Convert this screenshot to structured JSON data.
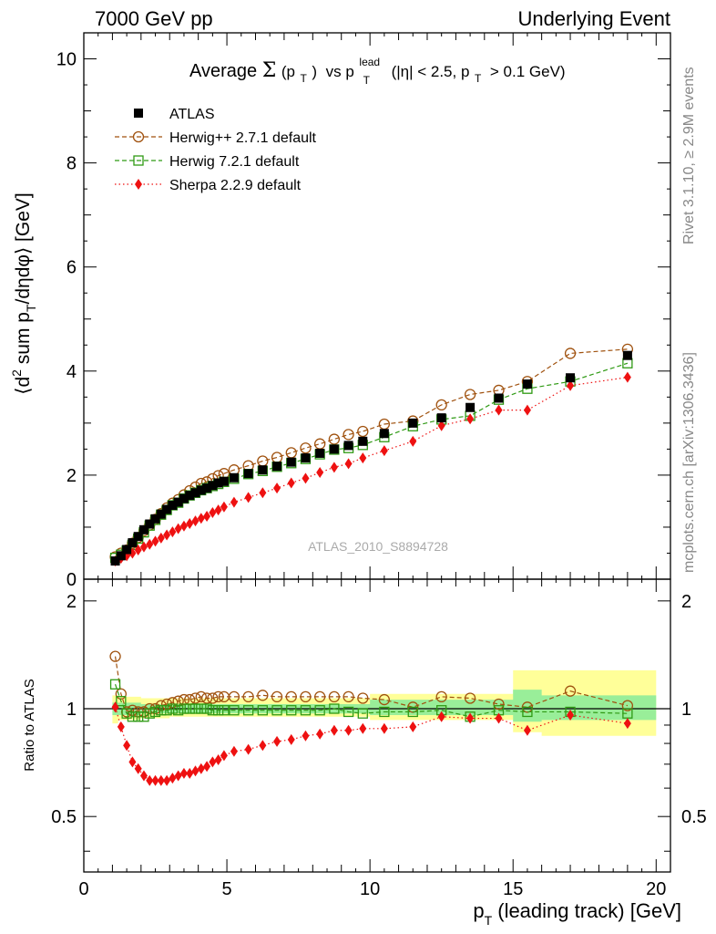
{
  "header": {
    "left": "7000 GeV pp",
    "right": "Underlying Event"
  },
  "side_text": {
    "rivet": "Rivet 3.1.10, ≥ 2.9M events",
    "mcplots": "mcplots.cern.ch [arXiv:1306.3436]"
  },
  "chart_data": [
    {
      "type": "scatter",
      "panel": "main",
      "title_parts": {
        "prefix": "Average",
        "sigma": "Σ",
        "pt": "(p",
        "pt_sub": "T",
        "pt_close": ")",
        "vs": "vs p",
        "lead_sup": "lead",
        "lead_sub": "T",
        "cuts": "(|η| < 2.5, p",
        "cuts_sub": "T",
        "cuts_end": "> 0.1 GeV)"
      },
      "ylabel_parts": {
        "a": "⟨d",
        "sup": "2",
        "b": " sum p",
        "sub": "T",
        "c": "/dηdφ⟩ [GeV]"
      },
      "watermark": "ATLAS_2010_S8894728",
      "xlim": [
        0,
        20.5
      ],
      "ylim": [
        0,
        10.5
      ],
      "y_ticks": [
        "0",
        "2",
        "4",
        "6",
        "8",
        "10"
      ],
      "legend_position": "top-left",
      "series": [
        {
          "name": "ATLAS",
          "marker": "filled-square",
          "color": "#000000",
          "x": [
            1.1,
            1.3,
            1.5,
            1.7,
            1.9,
            2.1,
            2.3,
            2.5,
            2.7,
            2.9,
            3.1,
            3.3,
            3.5,
            3.7,
            3.9,
            4.1,
            4.3,
            4.5,
            4.7,
            4.9,
            5.25,
            5.75,
            6.25,
            6.75,
            7.25,
            7.75,
            8.25,
            8.75,
            9.25,
            9.75,
            10.5,
            11.5,
            12.5,
            13.5,
            14.5,
            15.5,
            17,
            19
          ],
          "y": [
            0.35,
            0.45,
            0.57,
            0.7,
            0.82,
            0.95,
            1.06,
            1.16,
            1.25,
            1.34,
            1.42,
            1.48,
            1.55,
            1.61,
            1.66,
            1.71,
            1.75,
            1.8,
            1.85,
            1.88,
            1.95,
            2.03,
            2.1,
            2.17,
            2.25,
            2.33,
            2.42,
            2.5,
            2.57,
            2.65,
            2.8,
            3.0,
            3.1,
            3.3,
            3.48,
            3.75,
            3.87,
            4.3
          ]
        },
        {
          "name": "Herwig++ 2.7.1 default",
          "marker": "open-circle",
          "line": "dashed",
          "color": "#a0520f",
          "x": [
            1.1,
            1.3,
            1.5,
            1.7,
            1.9,
            2.1,
            2.3,
            2.5,
            2.7,
            2.9,
            3.1,
            3.3,
            3.5,
            3.7,
            3.9,
            4.1,
            4.3,
            4.5,
            4.7,
            4.9,
            5.25,
            5.75,
            6.25,
            6.75,
            7.25,
            7.75,
            8.25,
            8.75,
            9.25,
            9.75,
            10.5,
            11.5,
            12.5,
            13.5,
            14.5,
            15.5,
            17,
            19
          ],
          "y": [
            0.43,
            0.5,
            0.56,
            0.69,
            0.8,
            0.93,
            1.04,
            1.15,
            1.26,
            1.37,
            1.46,
            1.53,
            1.62,
            1.7,
            1.77,
            1.84,
            1.87,
            1.93,
            1.99,
            2.03,
            2.1,
            2.18,
            2.27,
            2.34,
            2.43,
            2.52,
            2.6,
            2.69,
            2.78,
            2.84,
            2.98,
            3.04,
            3.35,
            3.55,
            3.63,
            3.8,
            4.34,
            4.42
          ]
        },
        {
          "name": "Herwig 7.2.1 default",
          "marker": "open-square",
          "line": "dashed",
          "color": "#2f9a14",
          "x": [
            1.1,
            1.3,
            1.5,
            1.7,
            1.9,
            2.1,
            2.3,
            2.5,
            2.7,
            2.9,
            3.1,
            3.3,
            3.5,
            3.7,
            3.9,
            4.1,
            4.3,
            4.5,
            4.7,
            4.9,
            5.25,
            5.75,
            6.25,
            6.75,
            7.25,
            7.75,
            8.25,
            8.75,
            9.25,
            9.75,
            10.5,
            11.5,
            12.5,
            13.5,
            14.5,
            15.5,
            17,
            19
          ],
          "y": [
            0.41,
            0.47,
            0.55,
            0.66,
            0.78,
            0.9,
            1.03,
            1.14,
            1.24,
            1.33,
            1.42,
            1.47,
            1.55,
            1.61,
            1.66,
            1.71,
            1.75,
            1.79,
            1.83,
            1.87,
            1.93,
            2.02,
            2.08,
            2.16,
            2.23,
            2.31,
            2.4,
            2.49,
            2.52,
            2.58,
            2.73,
            2.94,
            3.07,
            3.14,
            3.45,
            3.66,
            3.8,
            4.15
          ]
        },
        {
          "name": "Sherpa 2.2.9 default",
          "marker": "filled-diamond",
          "line": "dotted",
          "color": "#ee1111",
          "x": [
            1.1,
            1.3,
            1.5,
            1.7,
            1.9,
            2.1,
            2.3,
            2.5,
            2.7,
            2.9,
            3.1,
            3.3,
            3.5,
            3.7,
            3.9,
            4.1,
            4.3,
            4.5,
            4.7,
            4.9,
            5.25,
            5.75,
            6.25,
            6.75,
            7.25,
            7.75,
            8.25,
            8.75,
            9.25,
            9.75,
            10.5,
            11.5,
            12.5,
            13.5,
            14.5,
            15.5,
            17,
            19
          ],
          "y": [
            0.35,
            0.4,
            0.45,
            0.5,
            0.56,
            0.62,
            0.67,
            0.73,
            0.79,
            0.85,
            0.91,
            0.97,
            1.02,
            1.07,
            1.12,
            1.17,
            1.21,
            1.28,
            1.33,
            1.39,
            1.48,
            1.57,
            1.66,
            1.75,
            1.85,
            1.94,
            2.05,
            2.15,
            2.22,
            2.33,
            2.47,
            2.65,
            2.95,
            3.08,
            3.25,
            3.25,
            3.72,
            3.88
          ]
        }
      ]
    },
    {
      "type": "scatter",
      "panel": "ratio",
      "ylabel": "Ratio to ATLAS",
      "xlabel_parts": {
        "a": "p",
        "sub": "T",
        "b": " (leading track) [GeV]"
      },
      "xlim": [
        0,
        20.5
      ],
      "ylim": [
        0.35,
        2.3
      ],
      "x_ticks": [
        "0",
        "5",
        "10",
        "15",
        "20"
      ],
      "y_ticks": [
        "0.5",
        "1",
        "2"
      ],
      "band_outer": {
        "color": "#ffff99",
        "segments": [
          [
            1.0,
            1.09,
            0.91
          ],
          [
            1.2,
            1.08,
            0.93
          ],
          [
            2.0,
            1.07,
            0.94
          ],
          [
            3.0,
            1.07,
            0.95
          ],
          [
            5.0,
            1.07,
            0.95
          ],
          [
            10.0,
            1.1,
            0.93
          ],
          [
            15.0,
            1.28,
            0.86
          ],
          [
            16.0,
            1.28,
            0.84
          ],
          [
            20.0,
            1.28,
            0.84
          ]
        ]
      },
      "band_inner": {
        "color": "#99ee99",
        "segments": [
          [
            1.0,
            1.04,
            0.96
          ],
          [
            2.0,
            1.03,
            0.97
          ],
          [
            5.0,
            1.03,
            0.97
          ],
          [
            10.0,
            1.06,
            0.96
          ],
          [
            15.0,
            1.13,
            0.92
          ],
          [
            16.0,
            1.09,
            0.93
          ],
          [
            20.0,
            1.09,
            0.93
          ]
        ]
      },
      "series": [
        {
          "name": "Herwig++ 2.7.1 default",
          "marker": "open-circle",
          "color": "#a0520f",
          "x": [
            1.1,
            1.3,
            1.5,
            1.7,
            1.9,
            2.1,
            2.3,
            2.5,
            2.7,
            2.9,
            3.1,
            3.3,
            3.5,
            3.7,
            3.9,
            4.1,
            4.3,
            4.5,
            4.7,
            4.9,
            5.25,
            5.75,
            6.25,
            6.75,
            7.25,
            7.75,
            8.25,
            8.75,
            9.25,
            9.75,
            10.5,
            11.5,
            12.5,
            13.5,
            14.5,
            15.5,
            17,
            19
          ],
          "y": [
            1.4,
            1.1,
            0.98,
            0.99,
            0.98,
            0.98,
            1.0,
            1.0,
            1.02,
            1.03,
            1.04,
            1.05,
            1.06,
            1.06,
            1.07,
            1.08,
            1.07,
            1.07,
            1.08,
            1.08,
            1.08,
            1.08,
            1.09,
            1.08,
            1.08,
            1.08,
            1.08,
            1.08,
            1.08,
            1.07,
            1.06,
            1.01,
            1.08,
            1.07,
            1.03,
            1.01,
            1.12,
            1.02
          ]
        },
        {
          "name": "Herwig 7.2.1 default",
          "marker": "open-square",
          "color": "#2f9a14",
          "x": [
            1.1,
            1.3,
            1.5,
            1.7,
            1.9,
            2.1,
            2.3,
            2.5,
            2.7,
            2.9,
            3.1,
            3.3,
            3.5,
            3.7,
            3.9,
            4.1,
            4.3,
            4.5,
            4.7,
            4.9,
            5.25,
            5.75,
            6.25,
            6.75,
            7.25,
            7.75,
            8.25,
            8.75,
            9.25,
            9.75,
            10.5,
            11.5,
            12.5,
            13.5,
            14.5,
            15.5,
            17,
            19
          ],
          "y": [
            1.17,
            1.05,
            0.97,
            0.95,
            0.95,
            0.95,
            0.97,
            0.98,
            0.99,
            0.99,
            1.0,
            0.99,
            1.0,
            1.0,
            1.0,
            1.0,
            1.0,
            0.99,
            0.99,
            0.99,
            0.99,
            0.99,
            0.99,
            0.99,
            0.99,
            0.99,
            0.99,
            1.0,
            0.98,
            0.97,
            0.98,
            0.98,
            0.99,
            0.95,
            0.99,
            0.98,
            0.98,
            0.97
          ]
        },
        {
          "name": "Sherpa 2.2.9 default",
          "marker": "filled-diamond",
          "color": "#ee1111",
          "x": [
            1.1,
            1.3,
            1.5,
            1.7,
            1.9,
            2.1,
            2.3,
            2.5,
            2.7,
            2.9,
            3.1,
            3.3,
            3.5,
            3.7,
            3.9,
            4.1,
            4.3,
            4.5,
            4.7,
            4.9,
            5.25,
            5.75,
            6.25,
            6.75,
            7.25,
            7.75,
            8.25,
            8.75,
            9.25,
            9.75,
            10.5,
            11.5,
            12.5,
            13.5,
            14.5,
            15.5,
            17,
            19
          ],
          "y": [
            1.01,
            0.89,
            0.79,
            0.71,
            0.68,
            0.65,
            0.63,
            0.63,
            0.63,
            0.63,
            0.64,
            0.65,
            0.66,
            0.66,
            0.67,
            0.68,
            0.69,
            0.71,
            0.72,
            0.74,
            0.76,
            0.77,
            0.79,
            0.81,
            0.82,
            0.84,
            0.85,
            0.87,
            0.87,
            0.88,
            0.88,
            0.89,
            0.95,
            0.94,
            0.94,
            0.87,
            0.96,
            0.91
          ]
        }
      ]
    }
  ]
}
